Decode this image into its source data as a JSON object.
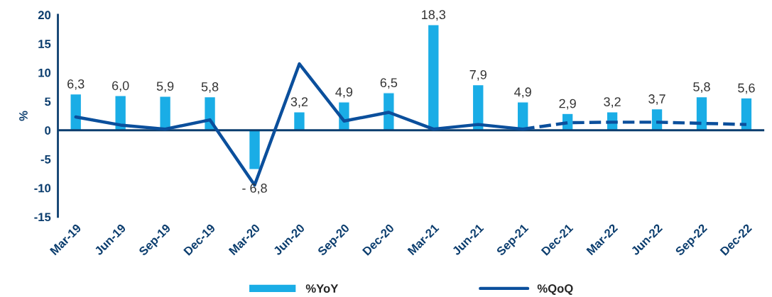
{
  "chart_data": {
    "type": "bar",
    "ylabel": "%",
    "categories": [
      "Mar-19",
      "Jun-19",
      "Sep-19",
      "Dec-19",
      "Mar-20",
      "Jun-20",
      "Sep-20",
      "Dec-20",
      "Mar-21",
      "Jun-21",
      "Sep-21",
      "Dec-21",
      "Mar-22",
      "Jun-22",
      "Sep-22",
      "Dec-22"
    ],
    "series": [
      {
        "name": "%YoY",
        "color": "#1aade6",
        "values": [
          6.3,
          6.0,
          5.9,
          5.8,
          -6.8,
          3.2,
          4.9,
          6.5,
          18.3,
          7.9,
          4.9,
          2.9,
          3.2,
          3.7,
          5.8,
          5.6
        ],
        "value_labels": [
          "6,3",
          "6,0",
          "5,9",
          "5,8",
          "- 6,8",
          "3,2",
          "4,9",
          "6,5",
          "18,3",
          "7,9",
          "4,9",
          "2,9",
          "3,2",
          "3,7",
          "5,8",
          "5,6"
        ]
      },
      {
        "name": "%QoQ",
        "type": "line",
        "color": "#0b4f9c",
        "line_style": "solid",
        "values": [
          2.3,
          0.9,
          0.2,
          1.8,
          -9.5,
          11.5,
          1.6,
          3.1,
          0.2,
          1.0,
          0.2,
          null,
          null,
          null,
          null,
          null
        ]
      },
      {
        "type": "line",
        "color": "#0b4f9c",
        "line_style": "dashed",
        "values": [
          null,
          null,
          null,
          null,
          null,
          null,
          null,
          null,
          null,
          null,
          0.2,
          1.3,
          1.4,
          1.4,
          1.2,
          1.0
        ]
      }
    ],
    "ylim": [
      -15,
      20
    ],
    "yticks": [
      -15,
      -10,
      -5,
      0,
      5,
      10,
      15,
      20
    ],
    "grid": false,
    "legend": "bottom",
    "ref_lines": [
      {
        "axis": "y",
        "value": 0,
        "color": "#0b3d6e"
      }
    ]
  }
}
